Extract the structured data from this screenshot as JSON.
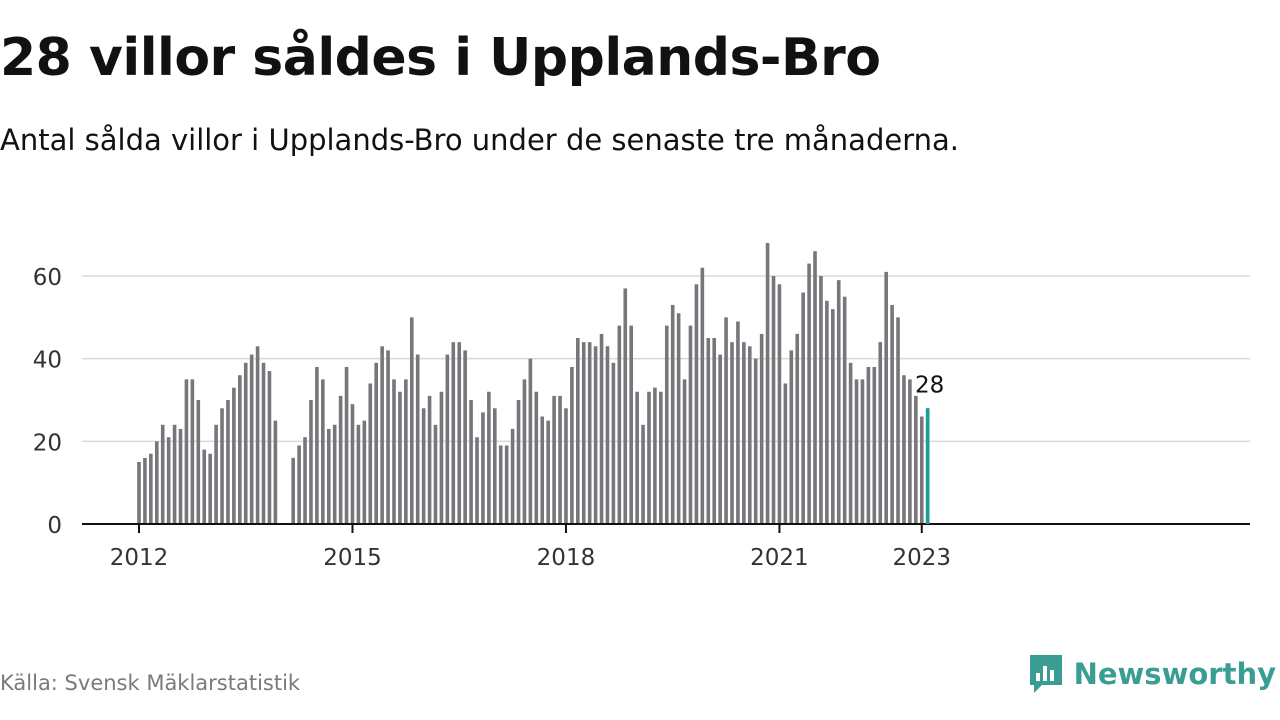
{
  "title": "28 villor såldes i Upplands-Bro",
  "subtitle": "Antal sålda villor i Upplands-Bro under de senaste tre månaderna.",
  "source": "Källa: Svensk Mäklarstatistik",
  "brand": {
    "name": "Newsworthy",
    "icon": "newsworthy-logo-icon"
  },
  "colors": {
    "bar": "#76767b",
    "highlight": "#1a9e96",
    "grid": "#d9d9d9",
    "axis": "#111111",
    "brand": "#3a9d94"
  },
  "chart_data": {
    "type": "bar",
    "title": "28 villor såldes i Upplands-Bro",
    "xlabel": "",
    "ylabel": "",
    "ylim": [
      0,
      70
    ],
    "yticks": [
      0,
      20,
      40,
      60
    ],
    "xticks": [
      "2012",
      "2015",
      "2018",
      "2021",
      "2023"
    ],
    "grid": true,
    "highlight": {
      "label": "28",
      "value": 28
    },
    "segments": [
      {
        "start": "2012-01",
        "values": [
          15,
          16,
          17,
          20,
          24,
          21,
          24,
          23,
          35,
          35,
          30,
          18,
          17,
          24,
          28,
          30,
          33,
          36,
          39,
          41,
          43,
          39,
          37,
          25
        ]
      },
      {
        "start": "2014-03",
        "values": [
          16,
          19,
          21,
          30,
          38,
          35,
          23,
          24,
          31,
          38,
          29,
          24,
          25,
          34,
          39,
          43,
          42,
          35,
          32,
          35,
          50,
          41,
          28,
          31,
          24,
          32,
          41,
          44,
          44,
          42,
          30,
          21,
          27,
          32,
          28,
          19,
          19,
          23,
          30,
          35,
          40,
          32,
          26,
          25,
          31,
          31,
          28,
          38,
          45,
          44,
          44,
          43,
          46,
          43,
          39,
          48,
          57,
          48,
          32,
          24,
          32,
          33,
          32,
          48,
          53,
          51,
          35,
          48,
          58,
          62,
          45,
          45,
          41,
          50,
          44,
          49,
          44,
          43,
          40,
          46,
          68,
          60,
          58,
          34,
          42,
          46,
          56,
          63,
          66,
          60,
          54,
          52,
          59,
          55,
          39,
          35,
          35,
          38,
          38,
          44,
          61,
          53,
          50,
          36,
          35,
          31,
          26,
          28
        ]
      }
    ]
  }
}
